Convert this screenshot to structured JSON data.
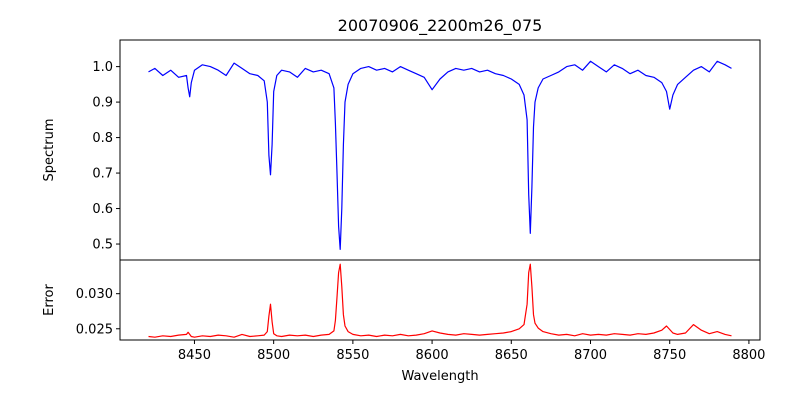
{
  "chart_data": {
    "type": "line",
    "title": "20070906_2200m26_075",
    "xlabel": "Wavelength",
    "xlim": [
      8403,
      8807
    ],
    "x_ticks": [
      "8450",
      "8500",
      "8550",
      "8600",
      "8650",
      "8700",
      "8750",
      "8800"
    ],
    "panels": [
      {
        "name": "spectrum-panel",
        "ylabel": "Spectrum",
        "ylim": [
          0.455,
          1.075
        ],
        "y_ticks": [
          "0.5",
          "0.6",
          "0.7",
          "0.8",
          "0.9",
          "1.0"
        ],
        "color": "#0000ff",
        "x": [
          8421,
          8425,
          8430,
          8435,
          8440,
          8445,
          8446,
          8447,
          8448,
          8450,
          8455,
          8460,
          8465,
          8470,
          8475,
          8480,
          8485,
          8490,
          8494,
          8496,
          8497,
          8498,
          8499,
          8500,
          8502,
          8505,
          8510,
          8515,
          8520,
          8525,
          8530,
          8535,
          8538,
          8539,
          8540,
          8541,
          8542,
          8543,
          8544,
          8545,
          8547,
          8550,
          8555,
          8560,
          8565,
          8570,
          8575,
          8580,
          8585,
          8590,
          8595,
          8600,
          8605,
          8610,
          8615,
          8620,
          8625,
          8630,
          8635,
          8640,
          8645,
          8650,
          8655,
          8658,
          8660,
          8661,
          8662,
          8663,
          8664,
          8665,
          8667,
          8670,
          8675,
          8680,
          8685,
          8690,
          8695,
          8700,
          8705,
          8710,
          8715,
          8720,
          8725,
          8730,
          8735,
          8740,
          8745,
          8748,
          8750,
          8752,
          8755,
          8760,
          8765,
          8770,
          8775,
          8780,
          8785,
          8789
        ],
        "y": [
          0.985,
          0.995,
          0.975,
          0.99,
          0.97,
          0.975,
          0.94,
          0.915,
          0.955,
          0.99,
          1.005,
          1.0,
          0.99,
          0.975,
          1.01,
          0.995,
          0.98,
          0.975,
          0.96,
          0.9,
          0.75,
          0.695,
          0.78,
          0.93,
          0.975,
          0.99,
          0.985,
          0.97,
          0.995,
          0.985,
          0.99,
          0.98,
          0.94,
          0.84,
          0.7,
          0.55,
          0.485,
          0.6,
          0.78,
          0.9,
          0.95,
          0.98,
          0.995,
          1.0,
          0.99,
          0.995,
          0.985,
          1.0,
          0.99,
          0.98,
          0.97,
          0.935,
          0.965,
          0.985,
          0.995,
          0.99,
          0.995,
          0.985,
          0.99,
          0.98,
          0.975,
          0.965,
          0.95,
          0.92,
          0.85,
          0.64,
          0.53,
          0.66,
          0.83,
          0.9,
          0.94,
          0.965,
          0.975,
          0.985,
          1.0,
          1.005,
          0.99,
          1.015,
          1.0,
          0.985,
          1.005,
          0.995,
          0.98,
          0.99,
          0.975,
          0.97,
          0.955,
          0.93,
          0.88,
          0.92,
          0.95,
          0.97,
          0.99,
          1.0,
          0.985,
          1.015,
          1.005,
          0.995
        ]
      },
      {
        "name": "error-panel",
        "ylabel": "Error",
        "ylim": [
          0.0234,
          0.0348
        ],
        "y_ticks": [
          "0.025",
          "0.030"
        ],
        "color": "#ff0000",
        "x": [
          8421,
          8425,
          8430,
          8435,
          8440,
          8445,
          8446,
          8447,
          8448,
          8450,
          8455,
          8460,
          8465,
          8470,
          8475,
          8480,
          8485,
          8490,
          8494,
          8496,
          8497,
          8498,
          8499,
          8500,
          8502,
          8505,
          8510,
          8515,
          8520,
          8525,
          8530,
          8535,
          8538,
          8539,
          8540,
          8541,
          8542,
          8543,
          8544,
          8545,
          8547,
          8550,
          8555,
          8560,
          8565,
          8570,
          8575,
          8580,
          8585,
          8590,
          8595,
          8600,
          8605,
          8610,
          8615,
          8620,
          8625,
          8630,
          8635,
          8640,
          8645,
          8650,
          8655,
          8658,
          8660,
          8661,
          8662,
          8663,
          8664,
          8665,
          8667,
          8670,
          8675,
          8680,
          8685,
          8690,
          8695,
          8700,
          8705,
          8710,
          8715,
          8720,
          8725,
          8730,
          8735,
          8740,
          8745,
          8748,
          8750,
          8752,
          8755,
          8760,
          8765,
          8770,
          8775,
          8780,
          8785,
          8789
        ],
        "y": [
          0.0239,
          0.0238,
          0.024,
          0.0239,
          0.0241,
          0.0242,
          0.0245,
          0.0242,
          0.0239,
          0.0238,
          0.024,
          0.0239,
          0.0241,
          0.024,
          0.0238,
          0.0242,
          0.0239,
          0.024,
          0.0241,
          0.0246,
          0.0268,
          0.0285,
          0.026,
          0.0243,
          0.024,
          0.0239,
          0.0241,
          0.024,
          0.0241,
          0.0239,
          0.0241,
          0.0242,
          0.0247,
          0.0262,
          0.0295,
          0.033,
          0.0342,
          0.031,
          0.027,
          0.0254,
          0.0246,
          0.0242,
          0.024,
          0.0241,
          0.0239,
          0.0241,
          0.024,
          0.0242,
          0.024,
          0.0241,
          0.0243,
          0.0247,
          0.0244,
          0.0242,
          0.0241,
          0.0243,
          0.0242,
          0.0241,
          0.0242,
          0.0243,
          0.0244,
          0.0246,
          0.025,
          0.0256,
          0.0285,
          0.033,
          0.0342,
          0.031,
          0.027,
          0.0258,
          0.0251,
          0.0246,
          0.0243,
          0.0241,
          0.0242,
          0.024,
          0.0243,
          0.0241,
          0.0242,
          0.0241,
          0.0243,
          0.0242,
          0.0241,
          0.0243,
          0.0242,
          0.0244,
          0.0248,
          0.0254,
          0.0249,
          0.0244,
          0.0242,
          0.0244,
          0.0256,
          0.0248,
          0.0243,
          0.0246,
          0.0242,
          0.024
        ]
      }
    ]
  }
}
